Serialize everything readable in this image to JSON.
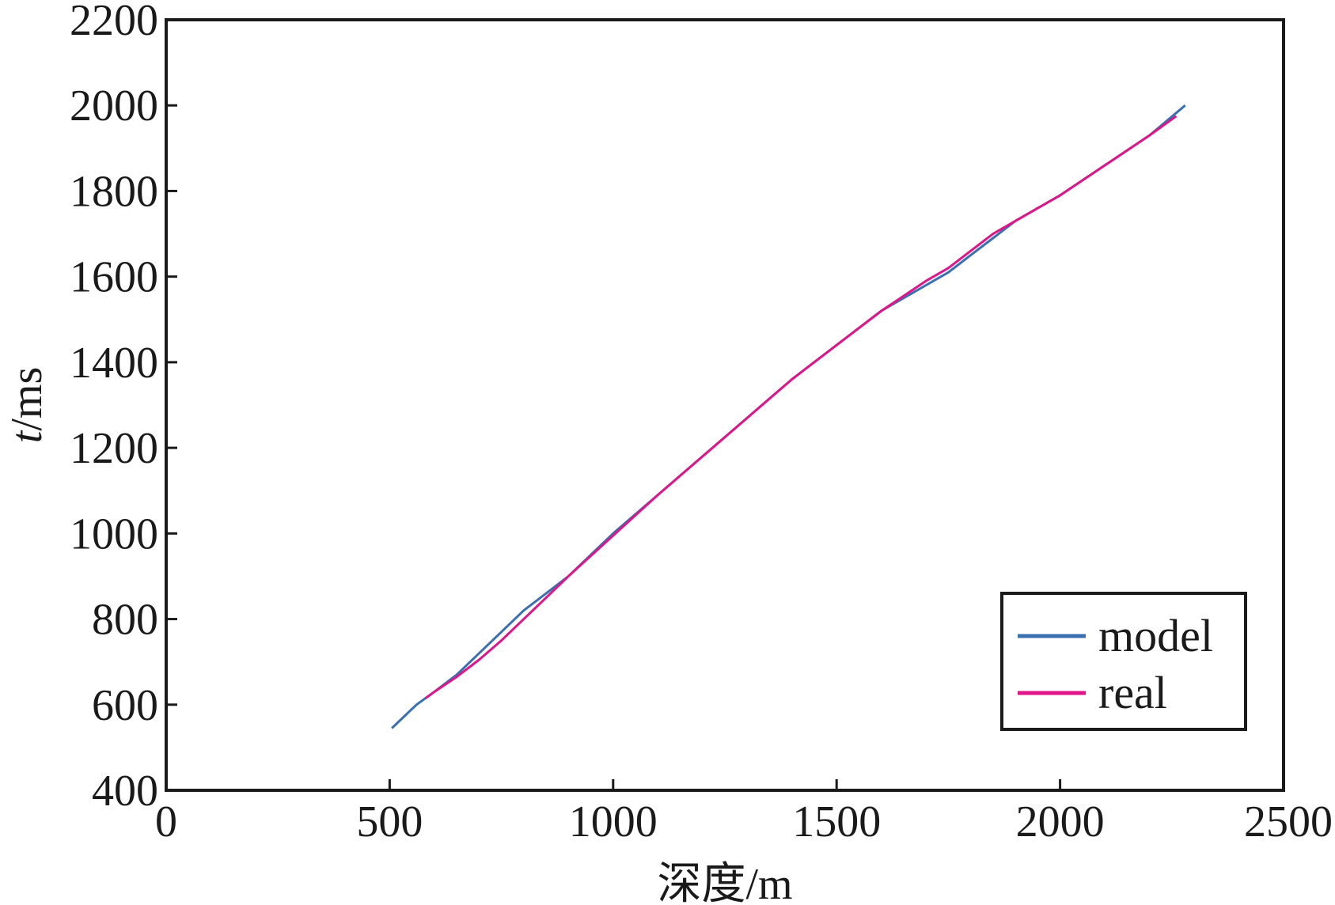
{
  "chart_data": {
    "type": "line",
    "xlabel": "深度/m",
    "ylabel_italic": "t",
    "ylabel_rest": "/ms",
    "xlim": [
      0,
      2500
    ],
    "ylim": [
      400,
      2200
    ],
    "xticks": [
      0,
      500,
      1000,
      1500,
      2000,
      2500
    ],
    "yticks": [
      400,
      600,
      800,
      1000,
      1200,
      1400,
      1600,
      1800,
      2000,
      2200
    ],
    "grid": false,
    "legend_position": "bottom-right",
    "series": [
      {
        "name": "model",
        "color": "#3a6fb0",
        "x": [
          505,
          530,
          560,
          600,
          650,
          700,
          750,
          800,
          850,
          900,
          1000,
          1100,
          1200,
          1300,
          1400,
          1500,
          1600,
          1700,
          1750,
          1800,
          1850,
          1900,
          2000,
          2100,
          2200,
          2280
        ],
        "y": [
          545,
          570,
          600,
          630,
          670,
          720,
          770,
          820,
          860,
          900,
          1000,
          1090,
          1180,
          1270,
          1360,
          1440,
          1520,
          1580,
          1610,
          1650,
          1690,
          1730,
          1790,
          1860,
          1930,
          2000
        ]
      },
      {
        "name": "real",
        "color": "#e0158a",
        "x": [
          580,
          600,
          650,
          700,
          750,
          800,
          850,
          900,
          1000,
          1100,
          1200,
          1300,
          1400,
          1500,
          1600,
          1700,
          1750,
          1800,
          1850,
          1900,
          2000,
          2100,
          2200,
          2260
        ],
        "y": [
          615,
          630,
          665,
          705,
          750,
          800,
          850,
          900,
          995,
          1090,
          1180,
          1270,
          1360,
          1440,
          1520,
          1590,
          1620,
          1660,
          1700,
          1730,
          1790,
          1860,
          1930,
          1975
        ]
      }
    ]
  }
}
